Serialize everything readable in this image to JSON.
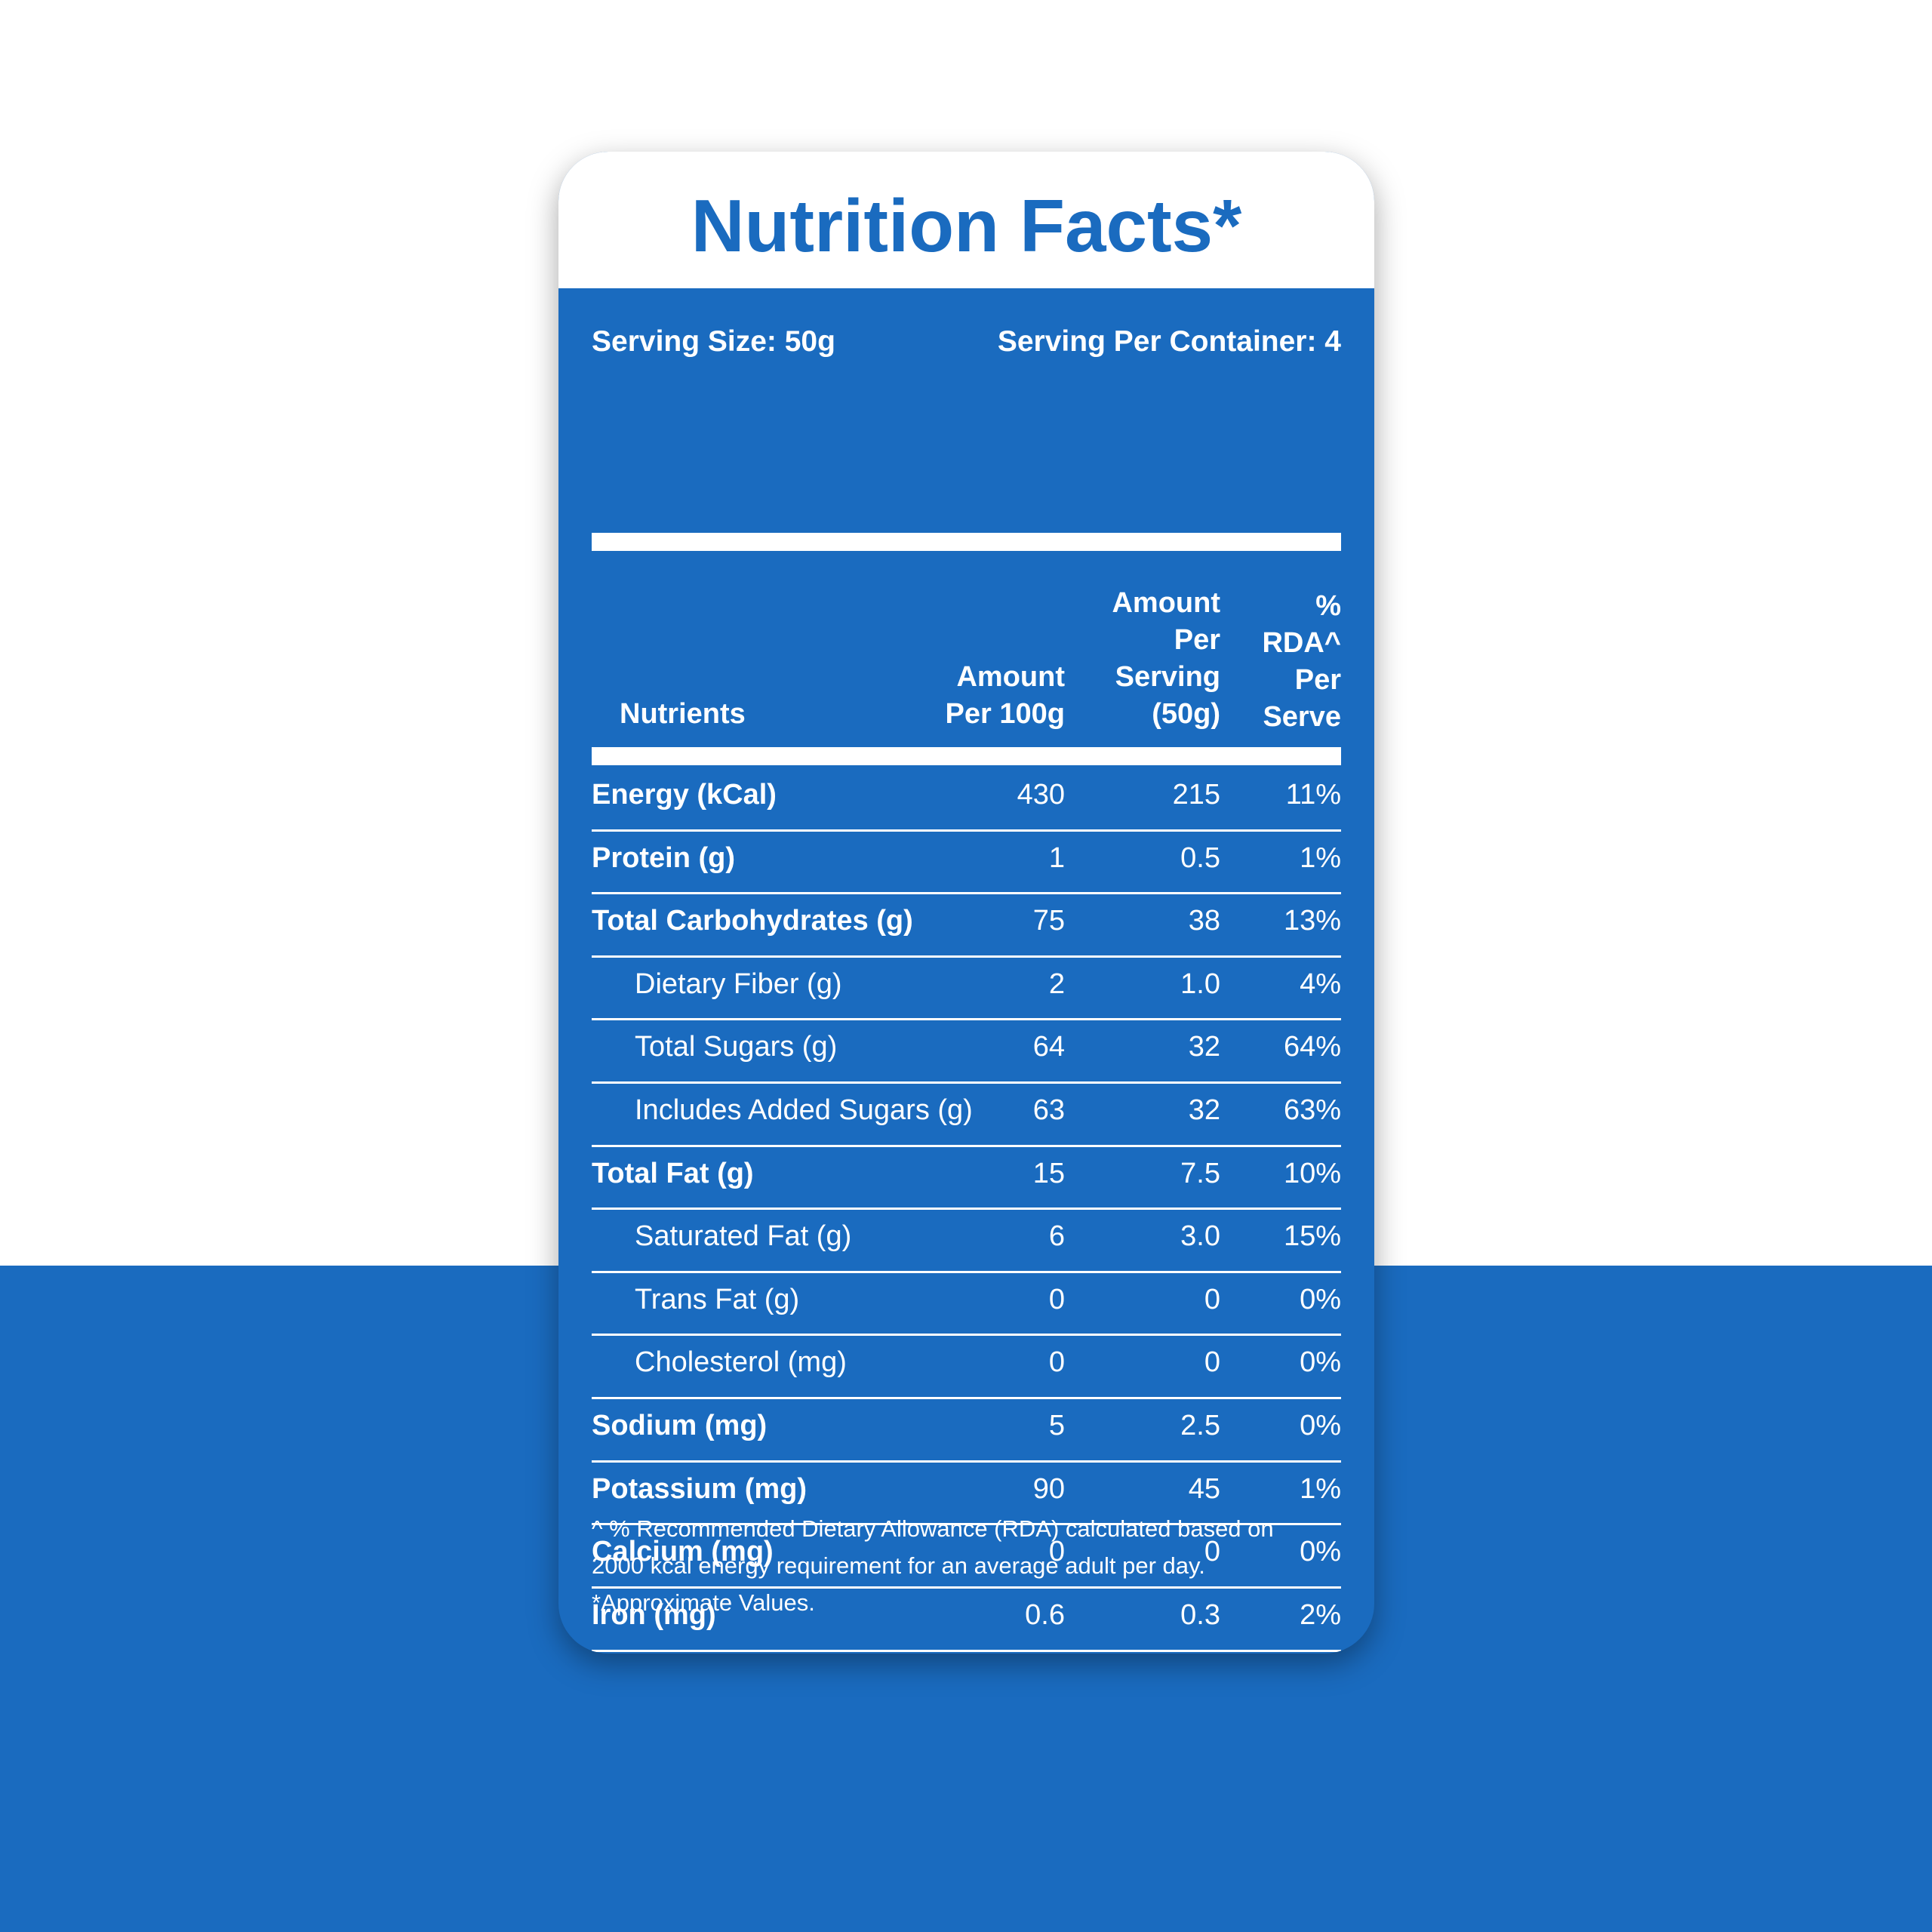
{
  "title": "Nutrition Facts*",
  "serving_size": "Serving Size: 50g",
  "servings_per_container": "Serving Per Container: 4",
  "columns": [
    "Nutrients",
    "Amount Per 100g",
    "Amount Per Serving (50g)",
    "% RDA^ Per Serve"
  ],
  "rows": [
    {
      "name": "Energy (kCal)",
      "values": [
        "430",
        "215",
        "11%"
      ]
    },
    {
      "name": "Protein (g)",
      "values": [
        "1",
        "0.5",
        "1%"
      ]
    },
    {
      "name": "Total Carbohydrates (g)",
      "values": [
        "75",
        "38",
        "13%"
      ],
      "sub": [
        {
          "name": "Dietary Fiber (g)",
          "values": [
            "2",
            "1.0",
            "4%"
          ]
        },
        {
          "name": "Total Sugars (g)",
          "values": [
            "64",
            "32",
            "64%"
          ]
        },
        {
          "name": "Includes Added Sugars (g)",
          "values": [
            "63",
            "32",
            "63%"
          ]
        }
      ]
    },
    {
      "name": "Total Fat (g)",
      "values": [
        "15",
        "7.5",
        "10%"
      ],
      "sub": [
        {
          "name": "Saturated Fat (g)",
          "values": [
            "6",
            "3.0",
            "15%"
          ]
        },
        {
          "name": "Trans Fat (g)",
          "values": [
            "0",
            "0",
            "0%"
          ]
        },
        {
          "name": "Cholesterol (mg)",
          "values": [
            "0",
            "0",
            "0%"
          ]
        }
      ]
    },
    {
      "name": "Sodium (mg)",
      "values": [
        "5",
        "2.5",
        "0%"
      ]
    },
    {
      "name": "Potassium  (mg)",
      "values": [
        "90",
        "45",
        "1%"
      ]
    },
    {
      "name": "Calcium (mg)",
      "values": [
        "0",
        "0",
        "0%"
      ]
    },
    {
      "name": "Iron (mg)",
      "values": [
        "0.6",
        "0.3",
        "2%"
      ]
    }
  ],
  "footnote": "^ % Recommended Dietary Allowance (RDA) calculated based on 2000 kcal energy requirement for an average adult per day.",
  "note": "*Approximate Values."
}
